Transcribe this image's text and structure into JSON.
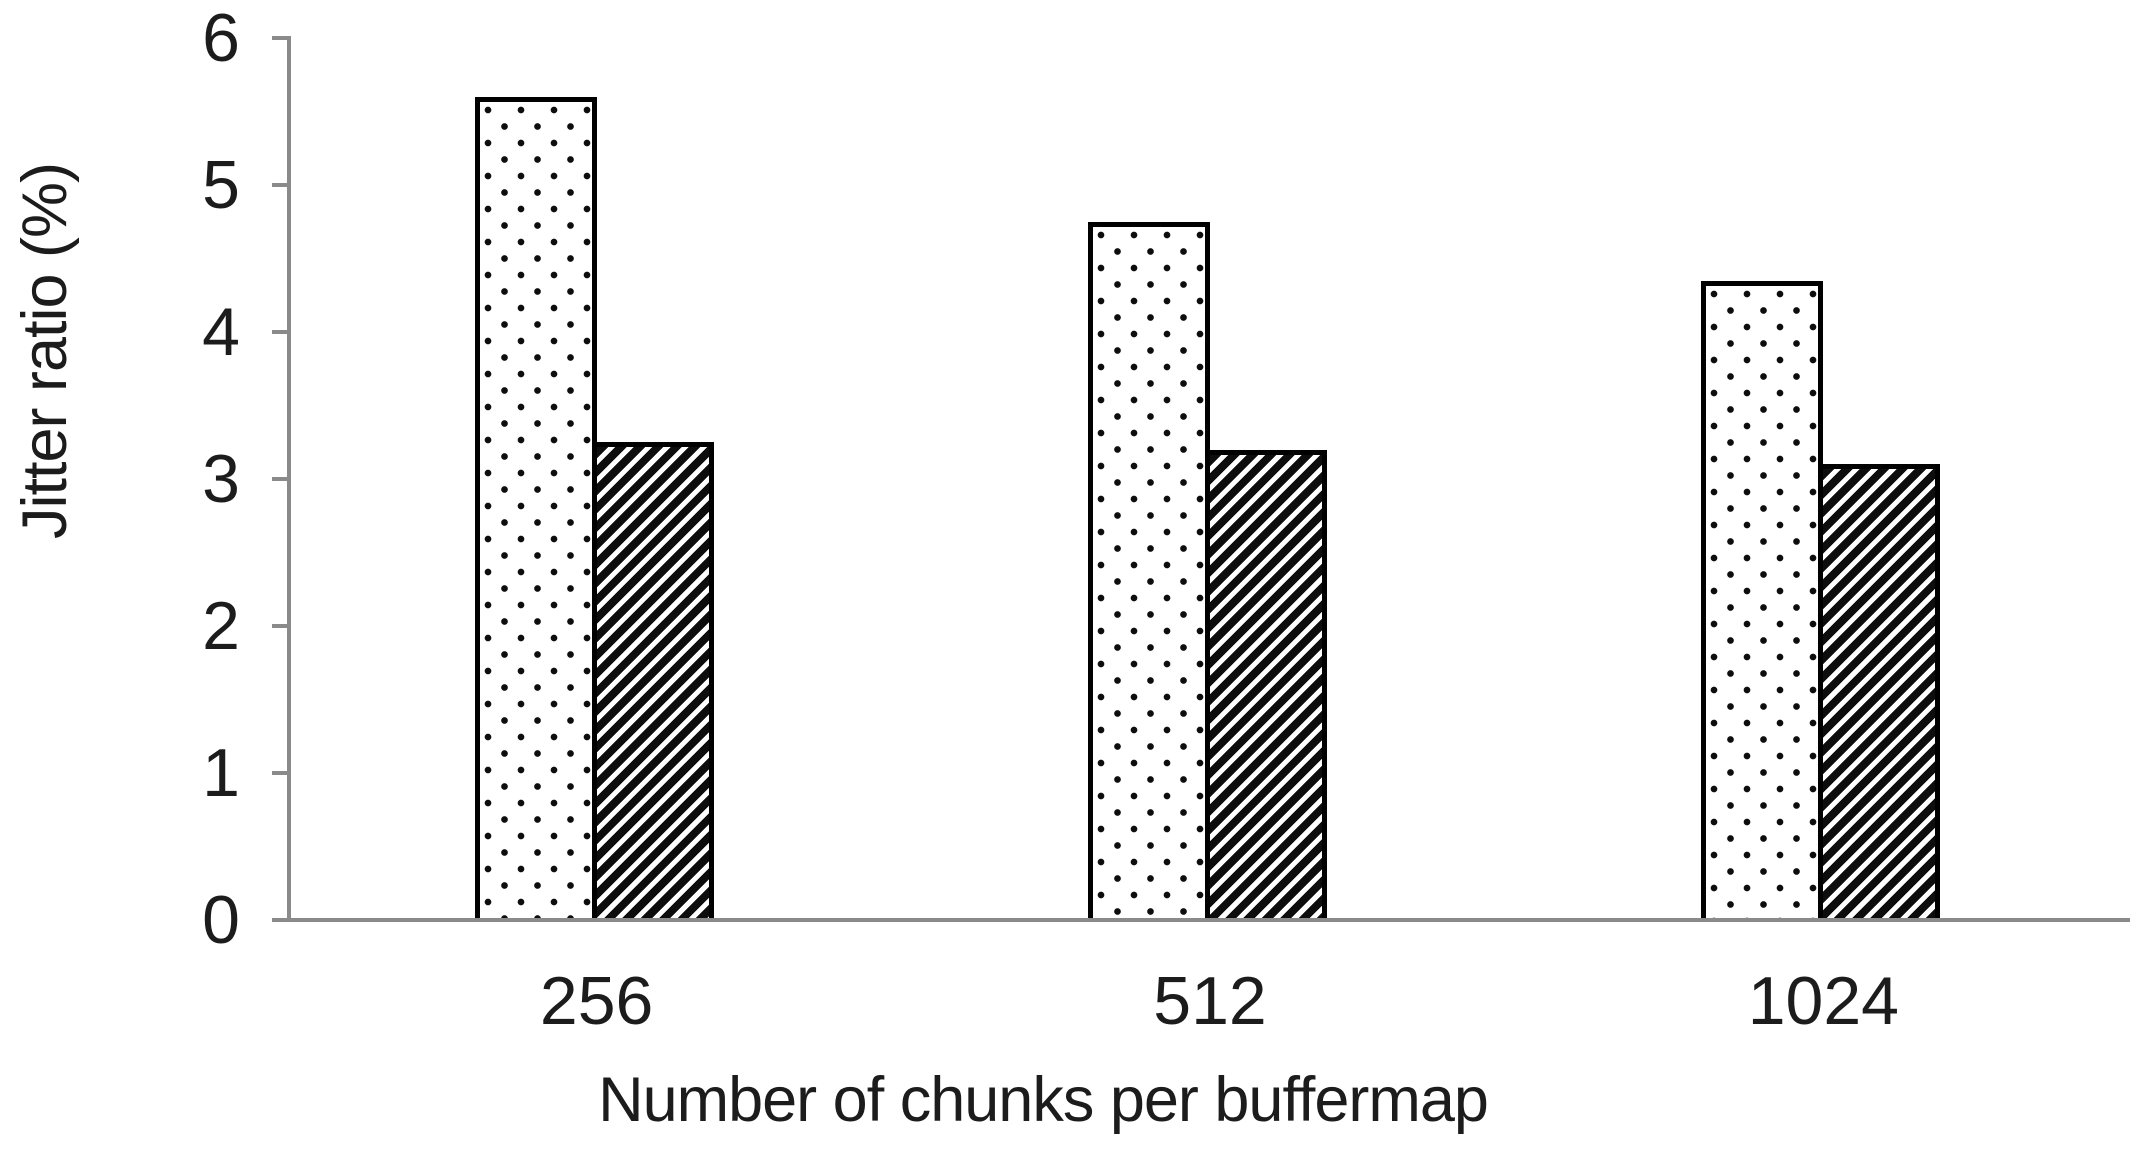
{
  "chart_data": {
    "type": "bar",
    "title": "",
    "xlabel": "Number of chunks per buffermap",
    "ylabel": "Jitter ratio (%)",
    "categories": [
      "256",
      "512",
      "1024"
    ],
    "series": [
      {
        "name": "dotted",
        "pattern": "dots",
        "values": [
          5.6,
          4.75,
          4.35
        ]
      },
      {
        "name": "hatched",
        "pattern": "diagonal-stripes",
        "values": [
          3.25,
          3.2,
          3.1
        ]
      }
    ],
    "ylim": [
      0,
      6
    ],
    "yticks": [
      0,
      1,
      2,
      3,
      4,
      5,
      6
    ],
    "grid": false,
    "legend": "none"
  },
  "style": {
    "axis_color": "#8a8a8a",
    "text_color": "#1c1c1c",
    "bar_border_color": "#000000",
    "bar_fill_color": "#ffffff",
    "pattern_ink_color": "#0d0d0d",
    "background_color": "#ffffff"
  }
}
